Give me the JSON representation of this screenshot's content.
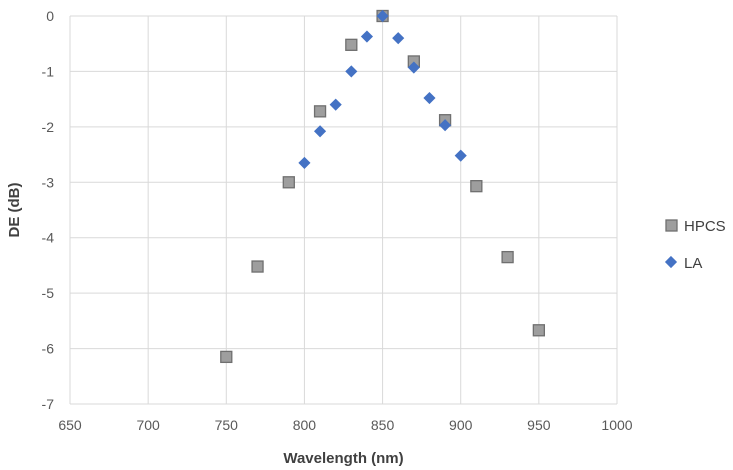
{
  "chart_data": {
    "type": "scatter",
    "title": "",
    "xlabel": "Wavelength (nm)",
    "ylabel": "DE (dB)",
    "xlim": [
      650,
      1000
    ],
    "ylim": [
      -7,
      0
    ],
    "x_ticks": [
      650,
      700,
      750,
      800,
      850,
      900,
      950,
      1000
    ],
    "y_ticks": [
      0,
      -1,
      -2,
      -3,
      -4,
      -5,
      -6,
      -7
    ],
    "x_tick_labels": [
      "650",
      "700",
      "750",
      "800",
      "850",
      "900",
      "950",
      "1000"
    ],
    "y_tick_labels": [
      "0",
      "-1",
      "-2",
      "-3",
      "-4",
      "-5",
      "-6",
      "-7"
    ],
    "grid": true,
    "legend_position": "right",
    "series": [
      {
        "name": "HPCS",
        "marker": "square",
        "color": "#9e9e9e",
        "stroke": "#6f6f6f",
        "points": [
          {
            "x": 750,
            "y": -6.15
          },
          {
            "x": 770,
            "y": -4.52
          },
          {
            "x": 790,
            "y": -3.0
          },
          {
            "x": 810,
            "y": -1.72
          },
          {
            "x": 830,
            "y": -0.52
          },
          {
            "x": 850,
            "y": 0.0
          },
          {
            "x": 870,
            "y": -0.82
          },
          {
            "x": 890,
            "y": -1.88
          },
          {
            "x": 910,
            "y": -3.07
          },
          {
            "x": 930,
            "y": -4.35
          },
          {
            "x": 950,
            "y": -5.67
          }
        ]
      },
      {
        "name": "LA",
        "marker": "diamond",
        "color": "#4472c4",
        "stroke": "#4472c4",
        "points": [
          {
            "x": 800,
            "y": -2.65
          },
          {
            "x": 810,
            "y": -2.08
          },
          {
            "x": 820,
            "y": -1.6
          },
          {
            "x": 830,
            "y": -1.0
          },
          {
            "x": 840,
            "y": -0.37
          },
          {
            "x": 850,
            "y": 0.0
          },
          {
            "x": 860,
            "y": -0.4
          },
          {
            "x": 870,
            "y": -0.93
          },
          {
            "x": 880,
            "y": -1.48
          },
          {
            "x": 890,
            "y": -1.97
          },
          {
            "x": 900,
            "y": -2.52
          }
        ]
      }
    ]
  },
  "colors": {
    "grid": "#d9d9d9",
    "axis_text": "#595959",
    "title_text": "#404040"
  }
}
